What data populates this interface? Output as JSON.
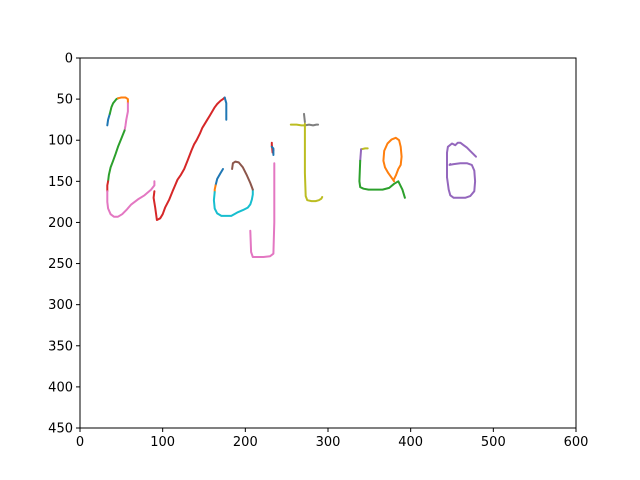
{
  "chart_data": {
    "type": "line",
    "title": "",
    "xlabel": "",
    "ylabel": "",
    "xlim": [
      0,
      600
    ],
    "ylim": [
      450,
      0
    ],
    "y_inverted": true,
    "grid": false,
    "x_ticks": [
      0,
      100,
      200,
      300,
      400,
      500,
      600
    ],
    "y_ticks": [
      0,
      50,
      100,
      150,
      200,
      250,
      300,
      350,
      400,
      450
    ],
    "series": [
      {
        "color": "#1f77b4",
        "x": [
          33,
          34,
          36
        ],
        "y": [
          82,
          75,
          68
        ]
      },
      {
        "color": "#2ca02c",
        "x": [
          36,
          38,
          40,
          44,
          46
        ],
        "y": [
          68,
          60,
          55,
          50,
          49
        ]
      },
      {
        "color": "#ff7f0e",
        "x": [
          46,
          50,
          55,
          58,
          58
        ],
        "y": [
          49,
          48,
          48,
          50,
          55
        ]
      },
      {
        "color": "#e377c2",
        "x": [
          58,
          58,
          56,
          55,
          54
        ],
        "y": [
          55,
          65,
          75,
          82,
          88
        ]
      },
      {
        "color": "#2ca02c",
        "x": [
          54,
          50,
          46,
          43,
          40,
          37,
          35,
          34
        ],
        "y": [
          88,
          98,
          108,
          117,
          125,
          133,
          142,
          150
        ]
      },
      {
        "color": "#d62728",
        "x": [
          34,
          33,
          33
        ],
        "y": [
          150,
          155,
          162
        ]
      },
      {
        "color": "#e377c2",
        "x": [
          33,
          33,
          34,
          37,
          41,
          46,
          51,
          56,
          62,
          70,
          78,
          86,
          90,
          90
        ],
        "y": [
          162,
          175,
          183,
          190,
          193,
          193,
          190,
          185,
          178,
          172,
          167,
          160,
          155,
          150
        ]
      },
      {
        "color": "#d62728",
        "x": [
          90,
          89,
          91,
          93,
          97,
          100,
          103,
          108,
          112,
          115,
          118,
          122,
          126,
          130,
          135,
          138,
          141,
          145,
          148,
          151,
          154,
          157,
          160,
          163,
          166,
          170,
          173,
          175
        ],
        "y": [
          162,
          170,
          182,
          197,
          195,
          190,
          182,
          172,
          162,
          155,
          148,
          142,
          135,
          125,
          112,
          105,
          100,
          92,
          85,
          80,
          75,
          70,
          65,
          60,
          56,
          52,
          50,
          48
        ]
      },
      {
        "color": "#1f77b4",
        "x": [
          175,
          177,
          177
        ],
        "y": [
          48,
          55,
          75
        ]
      },
      {
        "color": "#1f77b4",
        "x": [
          173,
          170,
          166,
          164
        ],
        "y": [
          135,
          140,
          147,
          155
        ]
      },
      {
        "color": "#ff7f0e",
        "x": [
          164,
          163,
          163
        ],
        "y": [
          155,
          160,
          163
        ]
      },
      {
        "color": "#17becf",
        "x": [
          163,
          162,
          163,
          166,
          171,
          176,
          183,
          190,
          197,
          203,
          206,
          208,
          209,
          209
        ],
        "y": [
          163,
          173,
          183,
          189,
          192,
          192,
          192,
          188,
          185,
          182,
          178,
          172,
          166,
          160
        ]
      },
      {
        "color": "#8c564b",
        "x": [
          209,
          206,
          202,
          197,
          192,
          188,
          185,
          184
        ],
        "y": [
          160,
          152,
          143,
          133,
          127,
          126,
          128,
          135
        ]
      },
      {
        "color": "#d62728",
        "x": [
          232,
          232,
          234,
          233,
          232
        ],
        "y": [
          103,
          108,
          112,
          115,
          105
        ]
      },
      {
        "color": "#1f77b4",
        "x": [
          232,
          234,
          234
        ],
        "y": [
          108,
          110,
          118
        ]
      },
      {
        "color": "#e377c2",
        "x": [
          235,
          235,
          234,
          230,
          222,
          215,
          209,
          207,
          206
        ],
        "y": [
          128,
          200,
          238,
          241,
          242,
          242,
          242,
          236,
          210
        ]
      },
      {
        "color": "#bcbd22",
        "x": [
          255,
          262,
          268,
          272
        ],
        "y": [
          81,
          81,
          82,
          82
        ]
      },
      {
        "color": "#7f7f7f",
        "x": [
          272,
          277,
          282,
          286,
          288
        ],
        "y": [
          82,
          81,
          82,
          81,
          81
        ]
      },
      {
        "color": "#7f7f7f",
        "x": [
          271,
          272
        ],
        "y": [
          68,
          78
        ]
      },
      {
        "color": "#bcbd22",
        "x": [
          272,
          272,
          273,
          275,
          280,
          285,
          289,
          292,
          293
        ],
        "y": [
          80,
          140,
          168,
          173,
          174,
          174,
          173,
          171,
          169
        ]
      },
      {
        "color": "#bcbd22",
        "x": [
          340,
          345,
          348
        ],
        "y": [
          111,
          110,
          110
        ]
      },
      {
        "color": "#9467bd",
        "x": [
          340,
          339
        ],
        "y": [
          111,
          125
        ]
      },
      {
        "color": "#2ca02c",
        "x": [
          339,
          338,
          339,
          343,
          349,
          357,
          366,
          374,
          380,
          385,
          390,
          393
        ],
        "y": [
          125,
          150,
          157,
          159,
          160,
          160,
          160,
          158,
          153,
          150,
          160,
          170
        ]
      },
      {
        "color": "#ff7f0e",
        "x": [
          380,
          378,
          373,
          369,
          367,
          368,
          372,
          377,
          382,
          386,
          388,
          389,
          388,
          385,
          382,
          380
        ],
        "y": [
          150,
          147,
          140,
          133,
          125,
          113,
          104,
          99,
          97,
          100,
          108,
          120,
          130,
          135,
          143,
          147
        ]
      },
      {
        "color": "#9467bd",
        "x": [
          444,
          444,
          445,
          450,
          454,
          457,
          460,
          464,
          468,
          472,
          476,
          479
        ],
        "y": [
          145,
          115,
          108,
          104,
          106,
          103,
          103,
          106,
          109,
          113,
          117,
          120
        ]
      },
      {
        "color": "#9467bd",
        "x": [
          448,
          447,
          452,
          460,
          468,
          474,
          477,
          478,
          477,
          472,
          466,
          458,
          452,
          448,
          446,
          444
        ],
        "y": [
          129,
          130,
          129,
          128,
          128,
          130,
          137,
          150,
          162,
          168,
          170,
          170,
          170,
          167,
          160,
          145
        ]
      }
    ]
  }
}
